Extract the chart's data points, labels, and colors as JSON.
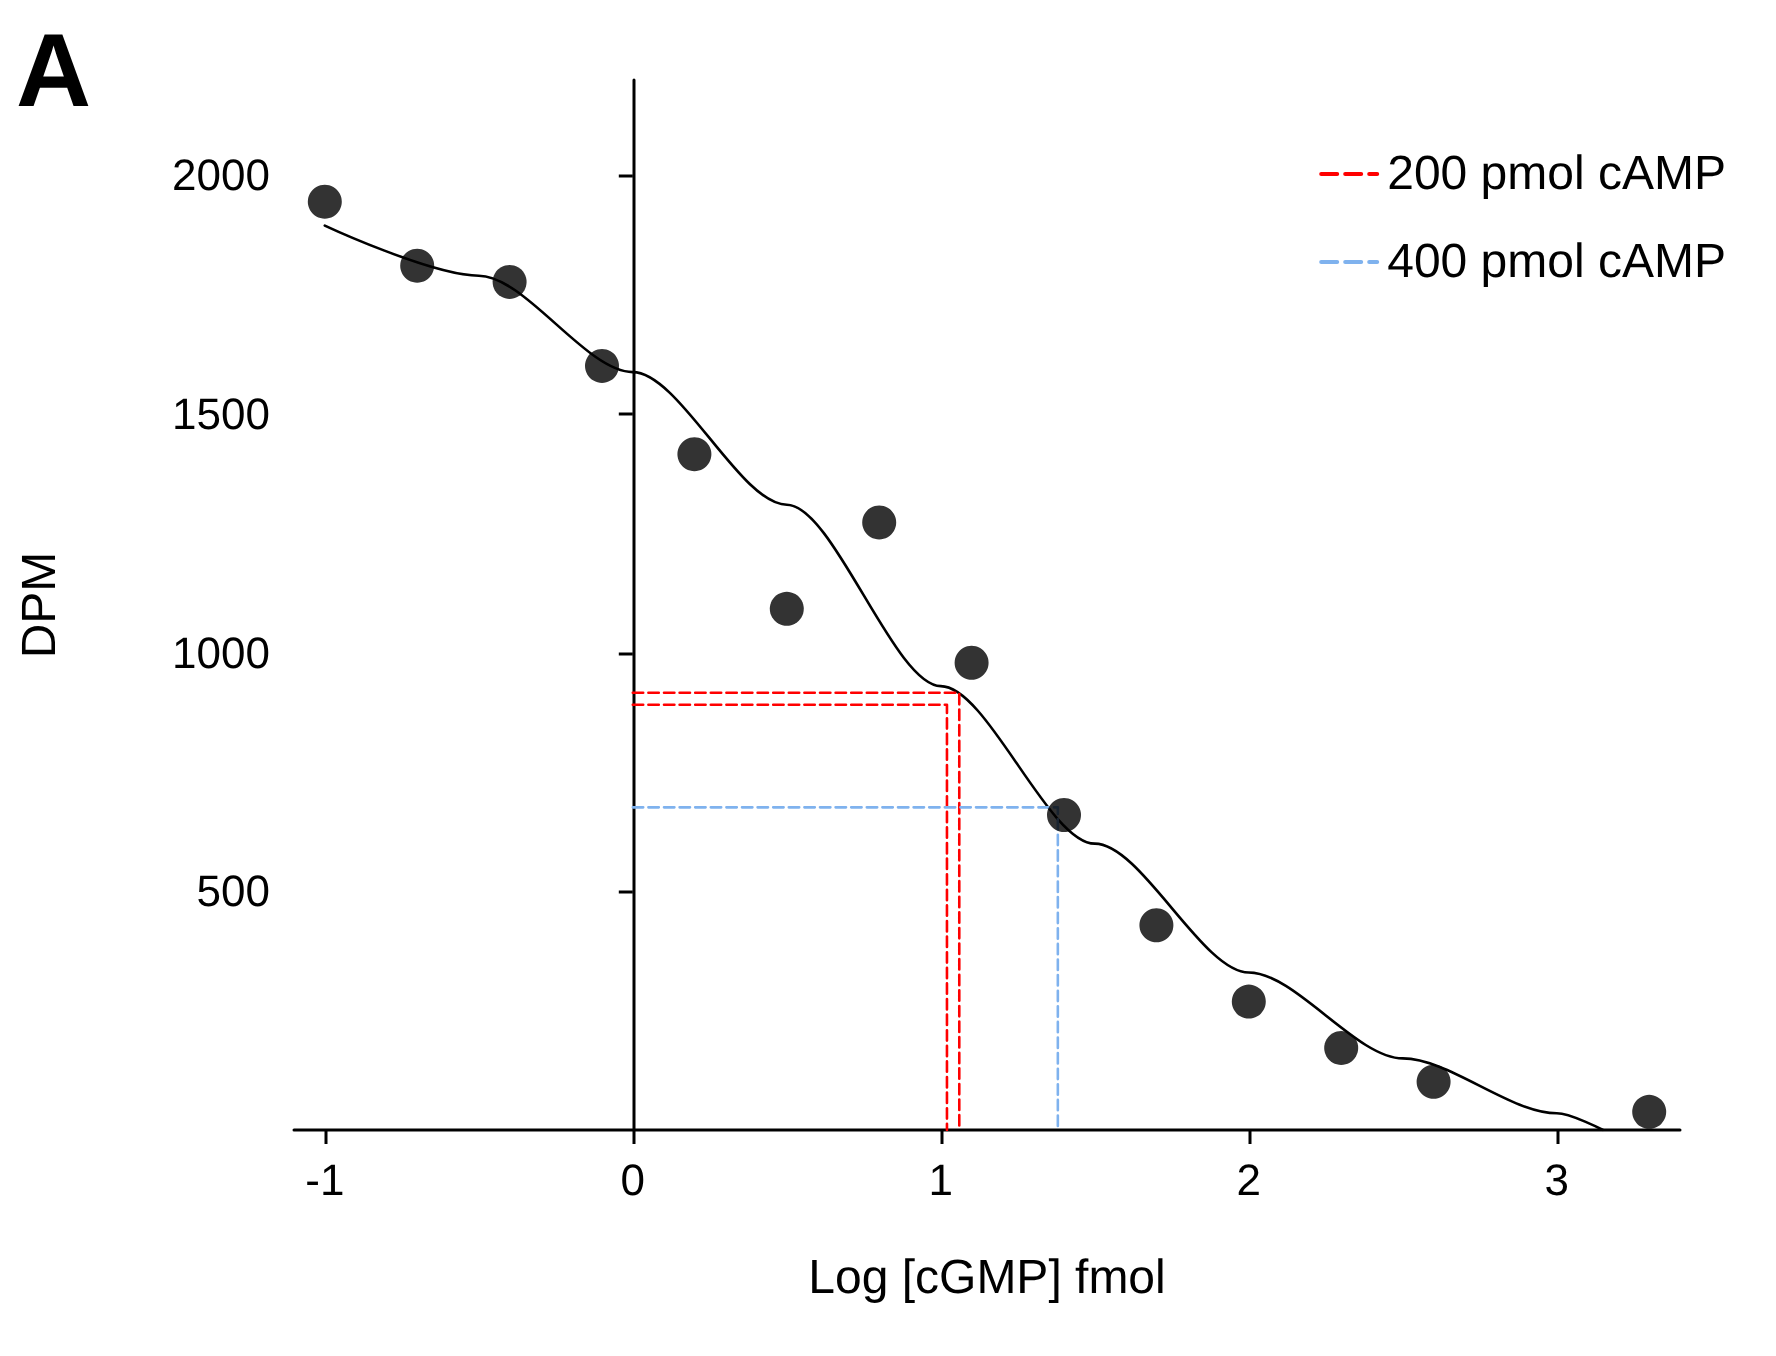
{
  "chart_data": {
    "type": "scatter",
    "xlabel": "Log [cGMP] fmol",
    "ylabel": "DPM",
    "annotations": [
      "A"
    ],
    "xlim": [
      -1.1,
      3.4
    ],
    "ylim": [
      0,
      2200
    ],
    "xticks": [
      -1,
      0,
      1,
      2,
      3
    ],
    "yticks": [
      500,
      1000,
      1500,
      2000
    ],
    "legend": "top right",
    "marker": "circle",
    "series": [
      {
        "color": "#000000",
        "x": [
          -1,
          -0.7,
          -0.4,
          -0.1,
          0.2,
          0.5,
          0.8,
          1.1,
          1.4,
          1.7,
          2.0,
          2.3,
          2.6,
          3.3
        ],
        "values": [
          1945,
          1811,
          1777,
          1601,
          1416,
          1092,
          1273,
          979,
          660,
          429,
          269,
          172,
          101,
          38
        ]
      },
      {
        "type": "line",
        "color": "#000000",
        "marker": "none",
        "line_style": "solid",
        "x": [
          -1,
          -0.5,
          0,
          0.5,
          1,
          1.5,
          2,
          2.5,
          3,
          3.15
        ],
        "values": [
          1895,
          1790,
          1588,
          1310,
          930,
          600,
          330,
          150,
          35,
          0
        ]
      },
      {
        "type": "line",
        "name": "200 pmol cAMP",
        "color": "#ff0000",
        "marker": "none",
        "line_style": "dashed",
        "x": [
          0,
          1.06,
          1.06,
          1.04,
          0,
          1.02,
          1.02
        ],
        "values": [
          916,
          916,
          0,
          null,
          891,
          891,
          0
        ]
      },
      {
        "type": "line",
        "name": "400 pmol cAMP",
        "color": "#7fb2ee",
        "marker": "none",
        "line_style": "dashed",
        "x": [
          0,
          1.38,
          1.38
        ],
        "values": [
          676,
          676,
          0
        ]
      }
    ]
  }
}
